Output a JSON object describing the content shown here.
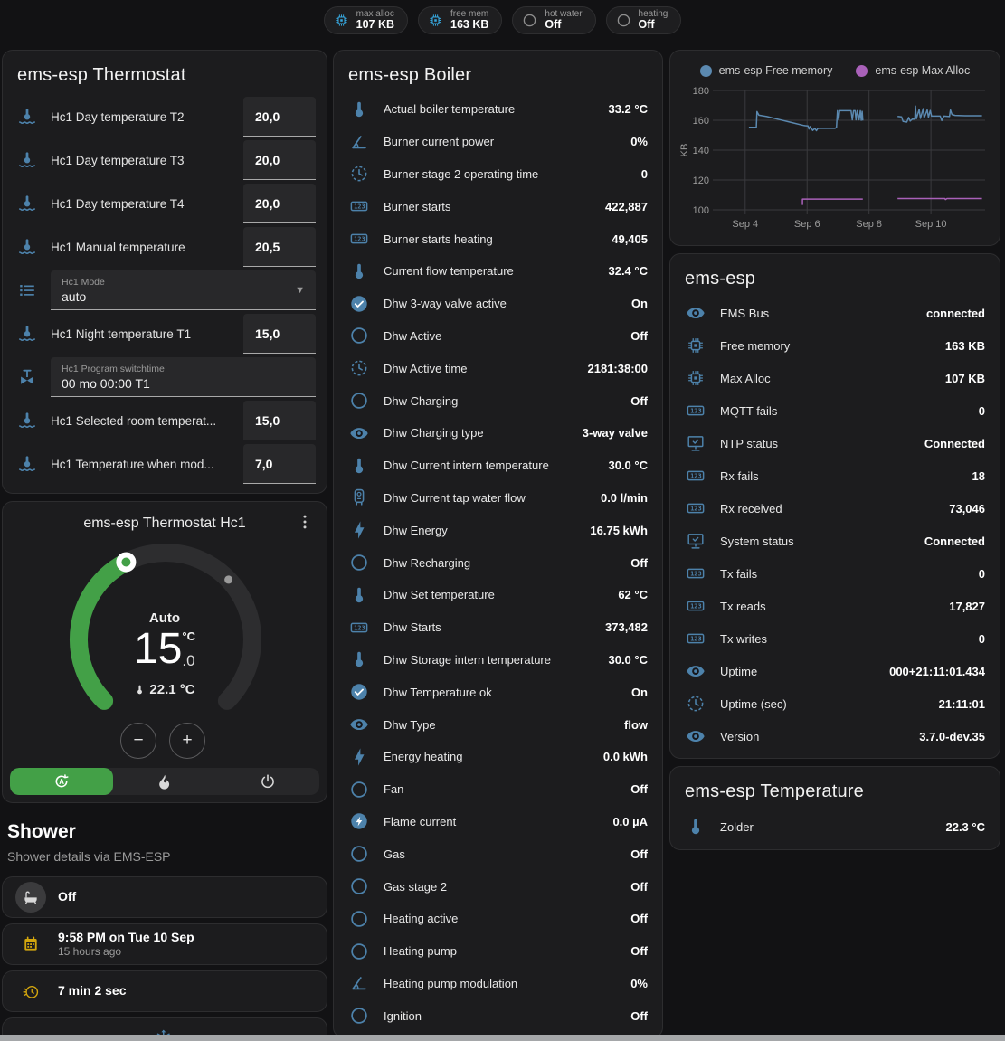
{
  "header": {
    "chips": [
      {
        "icon": "chip",
        "cls": "blue",
        "label": "max alloc",
        "value": "107 KB"
      },
      {
        "icon": "chip",
        "cls": "blue",
        "label": "free mem",
        "value": "163 KB"
      },
      {
        "icon": "circle",
        "cls": "gray",
        "label": "hot water",
        "value": "Off"
      },
      {
        "icon": "circle",
        "cls": "gray",
        "label": "heating",
        "value": "Off"
      }
    ]
  },
  "thermostat_card": {
    "title": "ems-esp Thermostat",
    "rows": [
      {
        "kind": "number",
        "icon": "thermo-water",
        "label": "Hc1 Day temperature T2",
        "input_value": "20,0"
      },
      {
        "kind": "number",
        "icon": "thermo-water",
        "label": "Hc1 Day temperature T3",
        "input_value": "20,0"
      },
      {
        "kind": "number",
        "icon": "thermo-water",
        "label": "Hc1 Day temperature T4",
        "input_value": "20,0"
      },
      {
        "kind": "number",
        "icon": "thermo-water",
        "label": "Hc1 Manual temperature",
        "input_value": "20,5"
      },
      {
        "kind": "select",
        "icon": "list",
        "field_label": "Hc1 Mode",
        "field_value": "auto",
        "has_arrow": "true"
      },
      {
        "kind": "number",
        "icon": "thermo-water",
        "label": "Hc1 Night temperature T1",
        "input_value": "15,0"
      },
      {
        "kind": "text",
        "icon": "valve",
        "field_label": "Hc1 Program switchtime",
        "field_value": "00 mo 00:00 T1"
      },
      {
        "kind": "number",
        "icon": "thermo-water",
        "label": "Hc1 Selected room temperat...",
        "input_value": "15,0"
      },
      {
        "kind": "number",
        "icon": "thermo-water",
        "label": "Hc1 Temperature when mod...",
        "input_value": "7,0"
      }
    ]
  },
  "dial_card": {
    "title": "ems-esp Thermostat Hc1",
    "menu_icon": "dots-vertical",
    "mode_label": "Auto",
    "temp_int": "15",
    "temp_frac": ".0",
    "temp_unit": "°C",
    "current_temp": "22.1 °C",
    "minus_label": "−",
    "plus_label": "+",
    "accent_green": "#43a047",
    "modes": [
      {
        "icon": "auto",
        "cls": "active"
      },
      {
        "icon": "flame"
      },
      {
        "icon": "power"
      }
    ]
  },
  "shower": {
    "title": "Shower",
    "subtitle": "Shower details via EMS-ESP",
    "cards": [
      {
        "icon": "bathtub",
        "cls": "graybg",
        "value": "Off"
      },
      {
        "icon": "calendar",
        "cls": "amber",
        "value": "9:58 PM on Tue 10 Sep",
        "secondary": "15 hours ago"
      },
      {
        "icon": "timer",
        "cls": "amber",
        "value": "7 min 2 sec"
      }
    ],
    "partial_card_icon": "snowflake-alert"
  },
  "boiler_card": {
    "title": "ems-esp Boiler",
    "rows": [
      {
        "icon": "thermo",
        "label": "Actual boiler temperature",
        "value": "33.2 °C"
      },
      {
        "icon": "angle",
        "label": "Burner current power",
        "value": "0%"
      },
      {
        "icon": "clock",
        "label": "Burner stage 2 operating time",
        "value": "0"
      },
      {
        "icon": "counter",
        "label": "Burner starts",
        "value": "422,887"
      },
      {
        "icon": "counter",
        "label": "Burner starts heating",
        "value": "49,405"
      },
      {
        "icon": "thermo",
        "label": "Current flow temperature",
        "value": "32.4 °C"
      },
      {
        "icon": "check-circle",
        "label": "Dhw 3-way valve active",
        "value": "On"
      },
      {
        "icon": "circle",
        "label": "Dhw Active",
        "value": "Off"
      },
      {
        "icon": "clock",
        "label": "Dhw Active time",
        "value": "2181:38:00"
      },
      {
        "icon": "circle",
        "label": "Dhw Charging",
        "value": "Off"
      },
      {
        "icon": "eye",
        "label": "Dhw Charging type",
        "value": "3-way valve"
      },
      {
        "icon": "thermo",
        "label": "Dhw Current intern temperature",
        "value": "30.0 °C"
      },
      {
        "icon": "boiler",
        "label": "Dhw Current tap water flow",
        "value": "0.0 l/min"
      },
      {
        "icon": "flash",
        "label": "Dhw Energy",
        "value": "16.75 kWh"
      },
      {
        "icon": "circle",
        "label": "Dhw Recharging",
        "value": "Off"
      },
      {
        "icon": "thermo",
        "label": "Dhw Set temperature",
        "value": "62 °C"
      },
      {
        "icon": "counter",
        "label": "Dhw Starts",
        "value": "373,482"
      },
      {
        "icon": "thermo",
        "label": "Dhw Storage intern temperature",
        "value": "30.0 °C"
      },
      {
        "icon": "check-circle",
        "label": "Dhw Temperature ok",
        "value": "On"
      },
      {
        "icon": "eye",
        "label": "Dhw Type",
        "value": "flow"
      },
      {
        "icon": "flash",
        "label": "Energy heating",
        "value": "0.0 kWh"
      },
      {
        "icon": "circle",
        "label": "Fan",
        "value": "Off"
      },
      {
        "icon": "flash-circle",
        "label": "Flame current",
        "value": "0.0 µA"
      },
      {
        "icon": "circle",
        "label": "Gas",
        "value": "Off"
      },
      {
        "icon": "circle",
        "label": "Gas stage 2",
        "value": "Off"
      },
      {
        "icon": "circle",
        "label": "Heating active",
        "value": "Off"
      },
      {
        "icon": "circle",
        "label": "Heating pump",
        "value": "Off"
      },
      {
        "icon": "angle",
        "label": "Heating pump modulation",
        "value": "0%"
      },
      {
        "icon": "circle",
        "label": "Ignition",
        "value": "Off"
      }
    ]
  },
  "esp_card": {
    "title": "ems-esp",
    "rows": [
      {
        "icon": "eye",
        "label": "EMS Bus",
        "value": "connected"
      },
      {
        "icon": "chip",
        "label": "Free memory",
        "value": "163 KB"
      },
      {
        "icon": "chip",
        "label": "Max Alloc",
        "value": "107 KB"
      },
      {
        "icon": "counter",
        "label": "MQTT fails",
        "value": "0"
      },
      {
        "icon": "monitor",
        "label": "NTP status",
        "value": "Connected"
      },
      {
        "icon": "counter",
        "label": "Rx fails",
        "value": "18"
      },
      {
        "icon": "counter",
        "label": "Rx received",
        "value": "73,046"
      },
      {
        "icon": "monitor",
        "label": "System status",
        "value": "Connected"
      },
      {
        "icon": "counter",
        "label": "Tx fails",
        "value": "0"
      },
      {
        "icon": "counter",
        "label": "Tx reads",
        "value": "17,827"
      },
      {
        "icon": "counter",
        "label": "Tx writes",
        "value": "0"
      },
      {
        "icon": "eye",
        "label": "Uptime",
        "value": "000+21:11:01.434"
      },
      {
        "icon": "clock",
        "label": "Uptime (sec)",
        "value": "21:11:01"
      },
      {
        "icon": "eye",
        "label": "Version",
        "value": "3.7.0-dev.35"
      }
    ]
  },
  "temp_card": {
    "title": "ems-esp Temperature",
    "rows": [
      {
        "icon": "thermo",
        "label": "Zolder",
        "value": "22.3 °C"
      }
    ]
  },
  "chart_data": {
    "type": "line",
    "title": "",
    "xlabel": "",
    "ylabel": "KB",
    "ylim": [
      100,
      180
    ],
    "yticks": [
      100,
      120,
      140,
      160,
      180
    ],
    "xlim": [
      3.1,
      11.75
    ],
    "xticks": [
      {
        "x": 4,
        "label": "Sep 4"
      },
      {
        "x": 6,
        "label": "Sep 6"
      },
      {
        "x": 8,
        "label": "Sep 8"
      },
      {
        "x": 10,
        "label": "Sep 10"
      }
    ],
    "grid": true,
    "legend_position": "top",
    "series": [
      {
        "name": "ems-esp Free memory",
        "color": "#5b89b0",
        "segments": [
          [
            [
              4.12,
              155.3
            ],
            [
              4.36,
              155.3
            ],
            [
              4.38,
              165.8
            ],
            [
              4.44,
              163.4
            ],
            [
              4.7,
              162.5
            ],
            [
              5.1,
              160.5
            ],
            [
              5.5,
              158.5
            ],
            [
              5.9,
              156.5
            ],
            [
              6.03,
              156.2
            ],
            [
              6.06,
              154.2
            ],
            [
              6.1,
              155.8
            ],
            [
              6.18,
              153.2
            ],
            [
              6.25,
              154.6
            ],
            [
              6.3,
              153.0
            ],
            [
              6.35,
              154.6
            ],
            [
              6.9,
              154.6
            ],
            [
              6.95,
              155.2
            ],
            [
              6.98,
              166.4
            ],
            [
              7.02,
              160.5
            ],
            [
              7.05,
              166.4
            ],
            [
              7.42,
              166.4
            ],
            [
              7.46,
              160.3
            ],
            [
              7.5,
              166.4
            ],
            [
              7.55,
              166.4
            ],
            [
              7.58,
              160.3
            ],
            [
              7.62,
              166.4
            ],
            [
              7.68,
              160.3
            ],
            [
              7.72,
              166.4
            ],
            [
              7.75,
              160.0
            ],
            [
              7.78,
              166.0
            ],
            [
              7.8,
              159.8
            ]
          ],
          [
            [
              8.92,
              162.6
            ],
            [
              9.05,
              162.3
            ],
            [
              9.1,
              159.2
            ],
            [
              9.22,
              158.8
            ],
            [
              9.28,
              161.9
            ],
            [
              9.33,
              159.5
            ],
            [
              9.4,
              160.8
            ],
            [
              9.48,
              160.8
            ],
            [
              9.5,
              169.6
            ],
            [
              9.53,
              161.0
            ],
            [
              9.62,
              167.3
            ],
            [
              9.66,
              161.3
            ],
            [
              9.75,
              167.8
            ],
            [
              9.78,
              161.6
            ],
            [
              9.88,
              167.0
            ],
            [
              9.92,
              162.0
            ],
            [
              9.98,
              166.6
            ],
            [
              10.02,
              162.8
            ],
            [
              10.3,
              162.8
            ],
            [
              10.35,
              159.8
            ],
            [
              10.42,
              162.8
            ],
            [
              10.6,
              162.5
            ],
            [
              10.63,
              166.9
            ],
            [
              10.68,
              163.9
            ],
            [
              10.78,
              163.3
            ],
            [
              11.1,
              163.0
            ],
            [
              11.65,
              163.0
            ]
          ]
        ]
      },
      {
        "name": "ems-esp Max Alloc",
        "color": "#a961b9",
        "segments": [
          [
            [
              5.85,
              103.3
            ],
            [
              5.85,
              107.2
            ],
            [
              7.8,
              107.2
            ]
          ],
          [
            [
              8.92,
              107.6
            ],
            [
              10.45,
              107.6
            ],
            [
              10.47,
              106.9
            ],
            [
              10.52,
              107.6
            ],
            [
              11.65,
              107.6
            ]
          ]
        ]
      }
    ]
  }
}
